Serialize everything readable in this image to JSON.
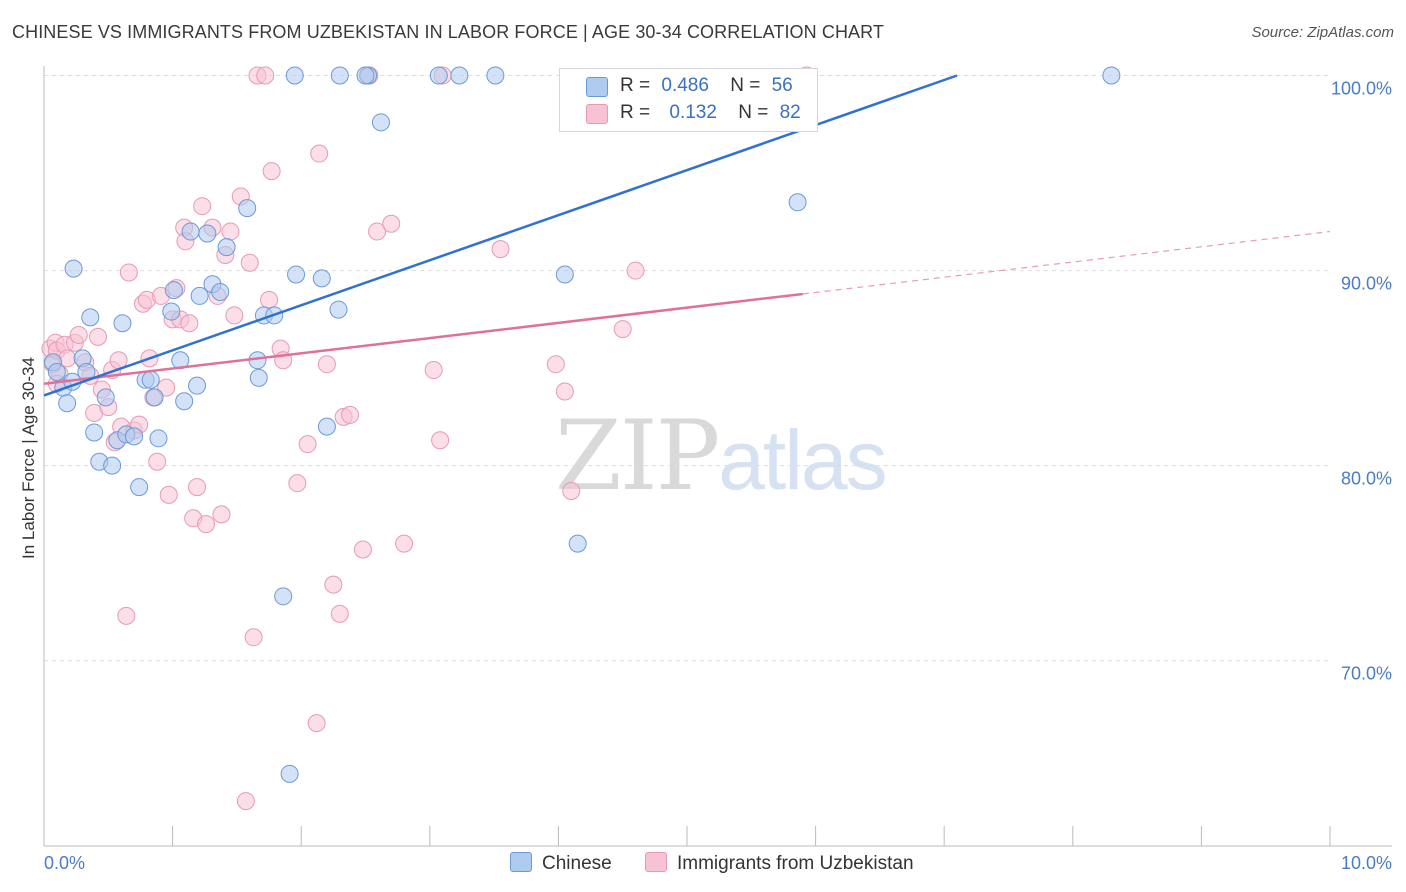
{
  "title": "CHINESE VS IMMIGRANTS FROM UZBEKISTAN IN LABOR FORCE | AGE 30-34 CORRELATION CHART",
  "source": "Source: ZipAtlas.com",
  "watermark": {
    "zip": "ZIP",
    "atlas": "atlas"
  },
  "legend": {
    "rows": [
      {
        "r_label": "R =",
        "r_value": "0.486",
        "n_label": "N =",
        "n_value": "56"
      },
      {
        "r_label": "R =",
        "r_value": "0.132",
        "n_label": "N =",
        "n_value": "82"
      }
    ]
  },
  "bottom_legend": {
    "chinese": "Chinese",
    "uzbek": "Immigrants from Uzbekistan"
  },
  "colors": {
    "chinese_fill": "#aecbf0",
    "chinese_stroke": "#6b9ad8",
    "chinese_line": "#2f72cf",
    "uzbek_fill": "#f7c2d3",
    "uzbek_stroke": "#e79ab4",
    "uzbek_line": "#e0709a",
    "grid": "#dddddd",
    "tick_text": "#4a7cc7"
  },
  "chart_data": {
    "type": "scatter",
    "title": "CHINESE VS IMMIGRANTS FROM UZBEKISTAN IN LABOR FORCE | AGE 30-34 CORRELATION CHART",
    "xlabel": "",
    "ylabel": "In Labor Force | Age 30-34",
    "xlim": [
      0,
      10
    ],
    "ylim": [
      60.5,
      101
    ],
    "x_tick_labels": [
      "0.0%",
      "10.0%"
    ],
    "y_ticks": [
      70,
      80,
      90,
      100
    ],
    "y_tick_labels": [
      "70.0%",
      "80.0%",
      "90.0%",
      "100.0%"
    ],
    "grid": true,
    "series": [
      {
        "name": "Chinese",
        "r": 0.486,
        "n": 56,
        "trend": {
          "x0": 0.0,
          "y0": 83.6,
          "x1": 7.1,
          "y1": 100.0
        },
        "points": [
          [
            0.07,
            85.3
          ],
          [
            0.1,
            84.8
          ],
          [
            0.15,
            84.0
          ],
          [
            0.18,
            83.2
          ],
          [
            0.22,
            84.3
          ],
          [
            0.23,
            90.1
          ],
          [
            0.3,
            85.5
          ],
          [
            0.33,
            84.8
          ],
          [
            0.36,
            87.6
          ],
          [
            0.39,
            81.7
          ],
          [
            0.43,
            80.2
          ],
          [
            0.48,
            83.5
          ],
          [
            0.53,
            80.0
          ],
          [
            0.57,
            81.3
          ],
          [
            0.61,
            87.3
          ],
          [
            0.64,
            81.6
          ],
          [
            0.7,
            81.5
          ],
          [
            0.74,
            78.9
          ],
          [
            0.79,
            84.4
          ],
          [
            0.83,
            84.4
          ],
          [
            0.86,
            83.5
          ],
          [
            0.89,
            81.4
          ],
          [
            0.99,
            87.9
          ],
          [
            1.01,
            89.0
          ],
          [
            1.06,
            85.4
          ],
          [
            1.09,
            83.3
          ],
          [
            1.14,
            92.0
          ],
          [
            1.19,
            84.1
          ],
          [
            1.21,
            88.7
          ],
          [
            1.27,
            91.9
          ],
          [
            1.31,
            89.3
          ],
          [
            1.37,
            88.9
          ],
          [
            1.42,
            91.2
          ],
          [
            1.58,
            93.2
          ],
          [
            1.66,
            85.4
          ],
          [
            1.67,
            84.5
          ],
          [
            1.71,
            87.7
          ],
          [
            1.79,
            87.7
          ],
          [
            1.86,
            73.3
          ],
          [
            1.91,
            64.2
          ],
          [
            1.95,
            100.0
          ],
          [
            1.96,
            89.8
          ],
          [
            2.16,
            89.6
          ],
          [
            2.2,
            82.0
          ],
          [
            2.3,
            100.0
          ],
          [
            2.29,
            88.0
          ],
          [
            2.52,
            100.0
          ],
          [
            2.62,
            97.6
          ],
          [
            3.07,
            100.0
          ],
          [
            3.23,
            100.0
          ],
          [
            3.51,
            100.0
          ],
          [
            4.05,
            89.8
          ],
          [
            4.15,
            76.0
          ],
          [
            5.86,
            93.5
          ],
          [
            8.3,
            100.0
          ],
          [
            2.5,
            100.0
          ]
        ]
      },
      {
        "name": "Immigrants from Uzbekistan",
        "r": 0.132,
        "n": 82,
        "trend": {
          "x0": 0.0,
          "y0": 84.2,
          "x1": 5.9,
          "y1": 88.8
        },
        "trend_dashed": {
          "x0": 5.9,
          "y0": 88.8,
          "x1": 10.0,
          "y1": 92.0
        },
        "points": [
          [
            0.05,
            86.0
          ],
          [
            0.07,
            85.2
          ],
          [
            0.09,
            86.3
          ],
          [
            0.1,
            85.9
          ],
          [
            0.12,
            84.7
          ],
          [
            0.16,
            86.2
          ],
          [
            0.18,
            85.5
          ],
          [
            0.24,
            86.3
          ],
          [
            0.27,
            86.7
          ],
          [
            0.32,
            85.3
          ],
          [
            0.36,
            84.6
          ],
          [
            0.39,
            82.7
          ],
          [
            0.42,
            86.6
          ],
          [
            0.45,
            83.9
          ],
          [
            0.5,
            83.0
          ],
          [
            0.53,
            84.9
          ],
          [
            0.55,
            81.2
          ],
          [
            0.58,
            85.4
          ],
          [
            0.6,
            82.0
          ],
          [
            0.64,
            72.3
          ],
          [
            0.66,
            89.9
          ],
          [
            0.7,
            81.8
          ],
          [
            0.74,
            82.1
          ],
          [
            0.77,
            88.3
          ],
          [
            0.8,
            88.5
          ],
          [
            0.82,
            85.5
          ],
          [
            0.85,
            83.5
          ],
          [
            0.88,
            80.2
          ],
          [
            0.91,
            88.7
          ],
          [
            0.95,
            84.0
          ],
          [
            0.97,
            78.5
          ],
          [
            1.0,
            87.5
          ],
          [
            1.03,
            89.1
          ],
          [
            1.06,
            87.5
          ],
          [
            1.09,
            92.2
          ],
          [
            1.1,
            91.5
          ],
          [
            1.13,
            87.3
          ],
          [
            1.16,
            77.3
          ],
          [
            1.19,
            78.9
          ],
          [
            1.23,
            93.3
          ],
          [
            1.26,
            77.0
          ],
          [
            1.31,
            92.2
          ],
          [
            1.35,
            88.7
          ],
          [
            1.38,
            77.5
          ],
          [
            1.41,
            90.8
          ],
          [
            1.45,
            92.0
          ],
          [
            1.48,
            87.7
          ],
          [
            1.53,
            93.8
          ],
          [
            1.57,
            62.8
          ],
          [
            1.6,
            90.4
          ],
          [
            1.63,
            71.2
          ],
          [
            1.66,
            100.0
          ],
          [
            1.72,
            100.0
          ],
          [
            1.75,
            88.5
          ],
          [
            1.77,
            95.1
          ],
          [
            1.84,
            86.0
          ],
          [
            1.86,
            85.4
          ],
          [
            1.97,
            79.1
          ],
          [
            2.05,
            81.1
          ],
          [
            2.12,
            66.8
          ],
          [
            2.14,
            96.0
          ],
          [
            2.2,
            85.2
          ],
          [
            2.25,
            73.9
          ],
          [
            2.3,
            72.4
          ],
          [
            2.33,
            82.5
          ],
          [
            2.38,
            82.6
          ],
          [
            2.48,
            75.7
          ],
          [
            2.53,
            100.0
          ],
          [
            2.59,
            92.0
          ],
          [
            2.7,
            92.4
          ],
          [
            2.8,
            76.0
          ],
          [
            3.03,
            84.9
          ],
          [
            3.08,
            81.3
          ],
          [
            3.1,
            100.0
          ],
          [
            3.55,
            91.1
          ],
          [
            3.98,
            85.2
          ],
          [
            4.05,
            83.8
          ],
          [
            4.1,
            78.7
          ],
          [
            4.5,
            87.0
          ],
          [
            4.6,
            90.0
          ],
          [
            5.93,
            100.0
          ],
          [
            0.1,
            84.2
          ]
        ]
      }
    ]
  }
}
